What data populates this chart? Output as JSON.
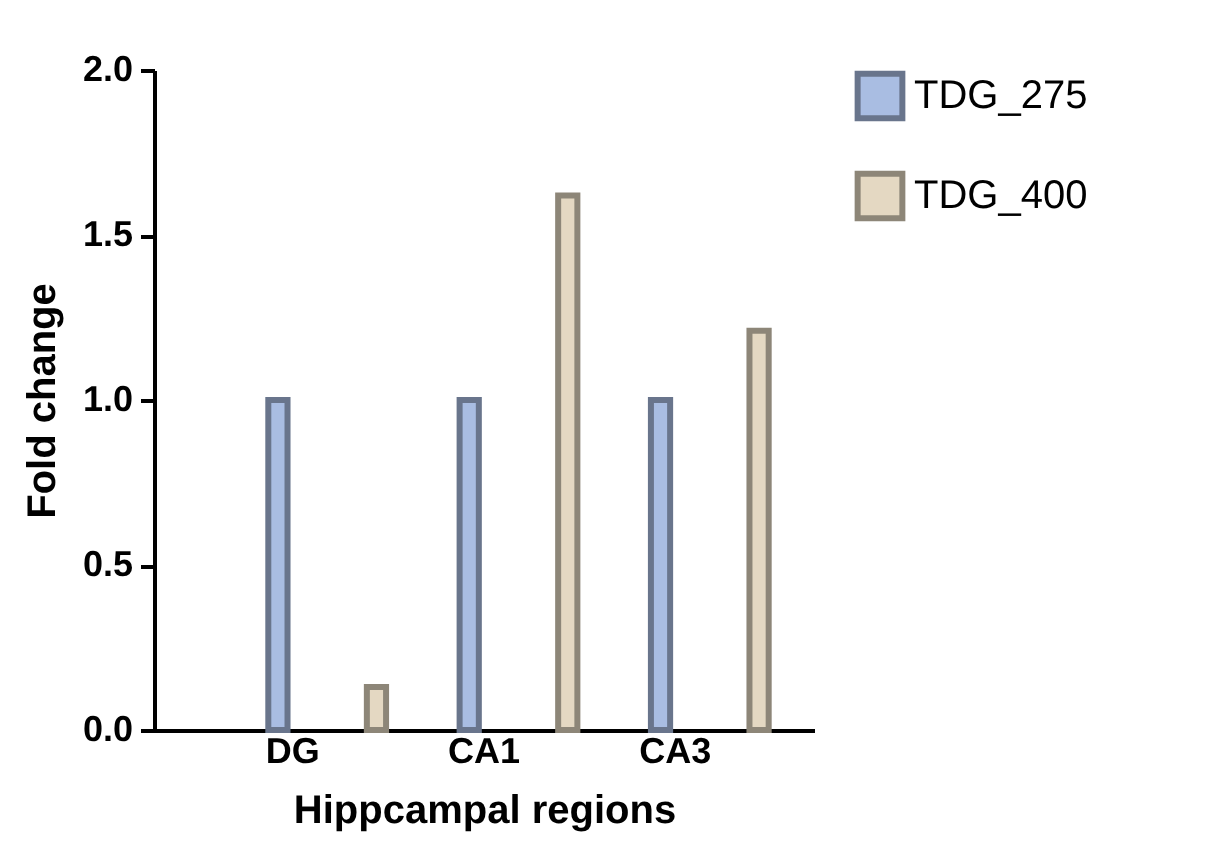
{
  "chart_data": {
    "type": "bar",
    "xlabel": "Hippcampal regions",
    "ylabel": "Fold change",
    "categories": [
      "DG",
      "CA1",
      "CA3"
    ],
    "series": [
      {
        "name": "TDG_275",
        "color": "#a9bde2",
        "values": [
          1.0,
          1.0,
          1.0
        ]
      },
      {
        "name": "TDG_400",
        "color": "#e4d8c2",
        "values": [
          0.13,
          1.62,
          1.21
        ]
      }
    ],
    "ylim": [
      0,
      2
    ],
    "yticks": [
      {
        "value": 0,
        "label": "0.0"
      },
      {
        "value": 0.5,
        "label": "0.5"
      },
      {
        "value": 1,
        "label": "1.0"
      },
      {
        "value": 1.5,
        "label": "1.5"
      },
      {
        "value": 2,
        "label": "2.0"
      }
    ],
    "grid": false,
    "legend": "top right"
  }
}
